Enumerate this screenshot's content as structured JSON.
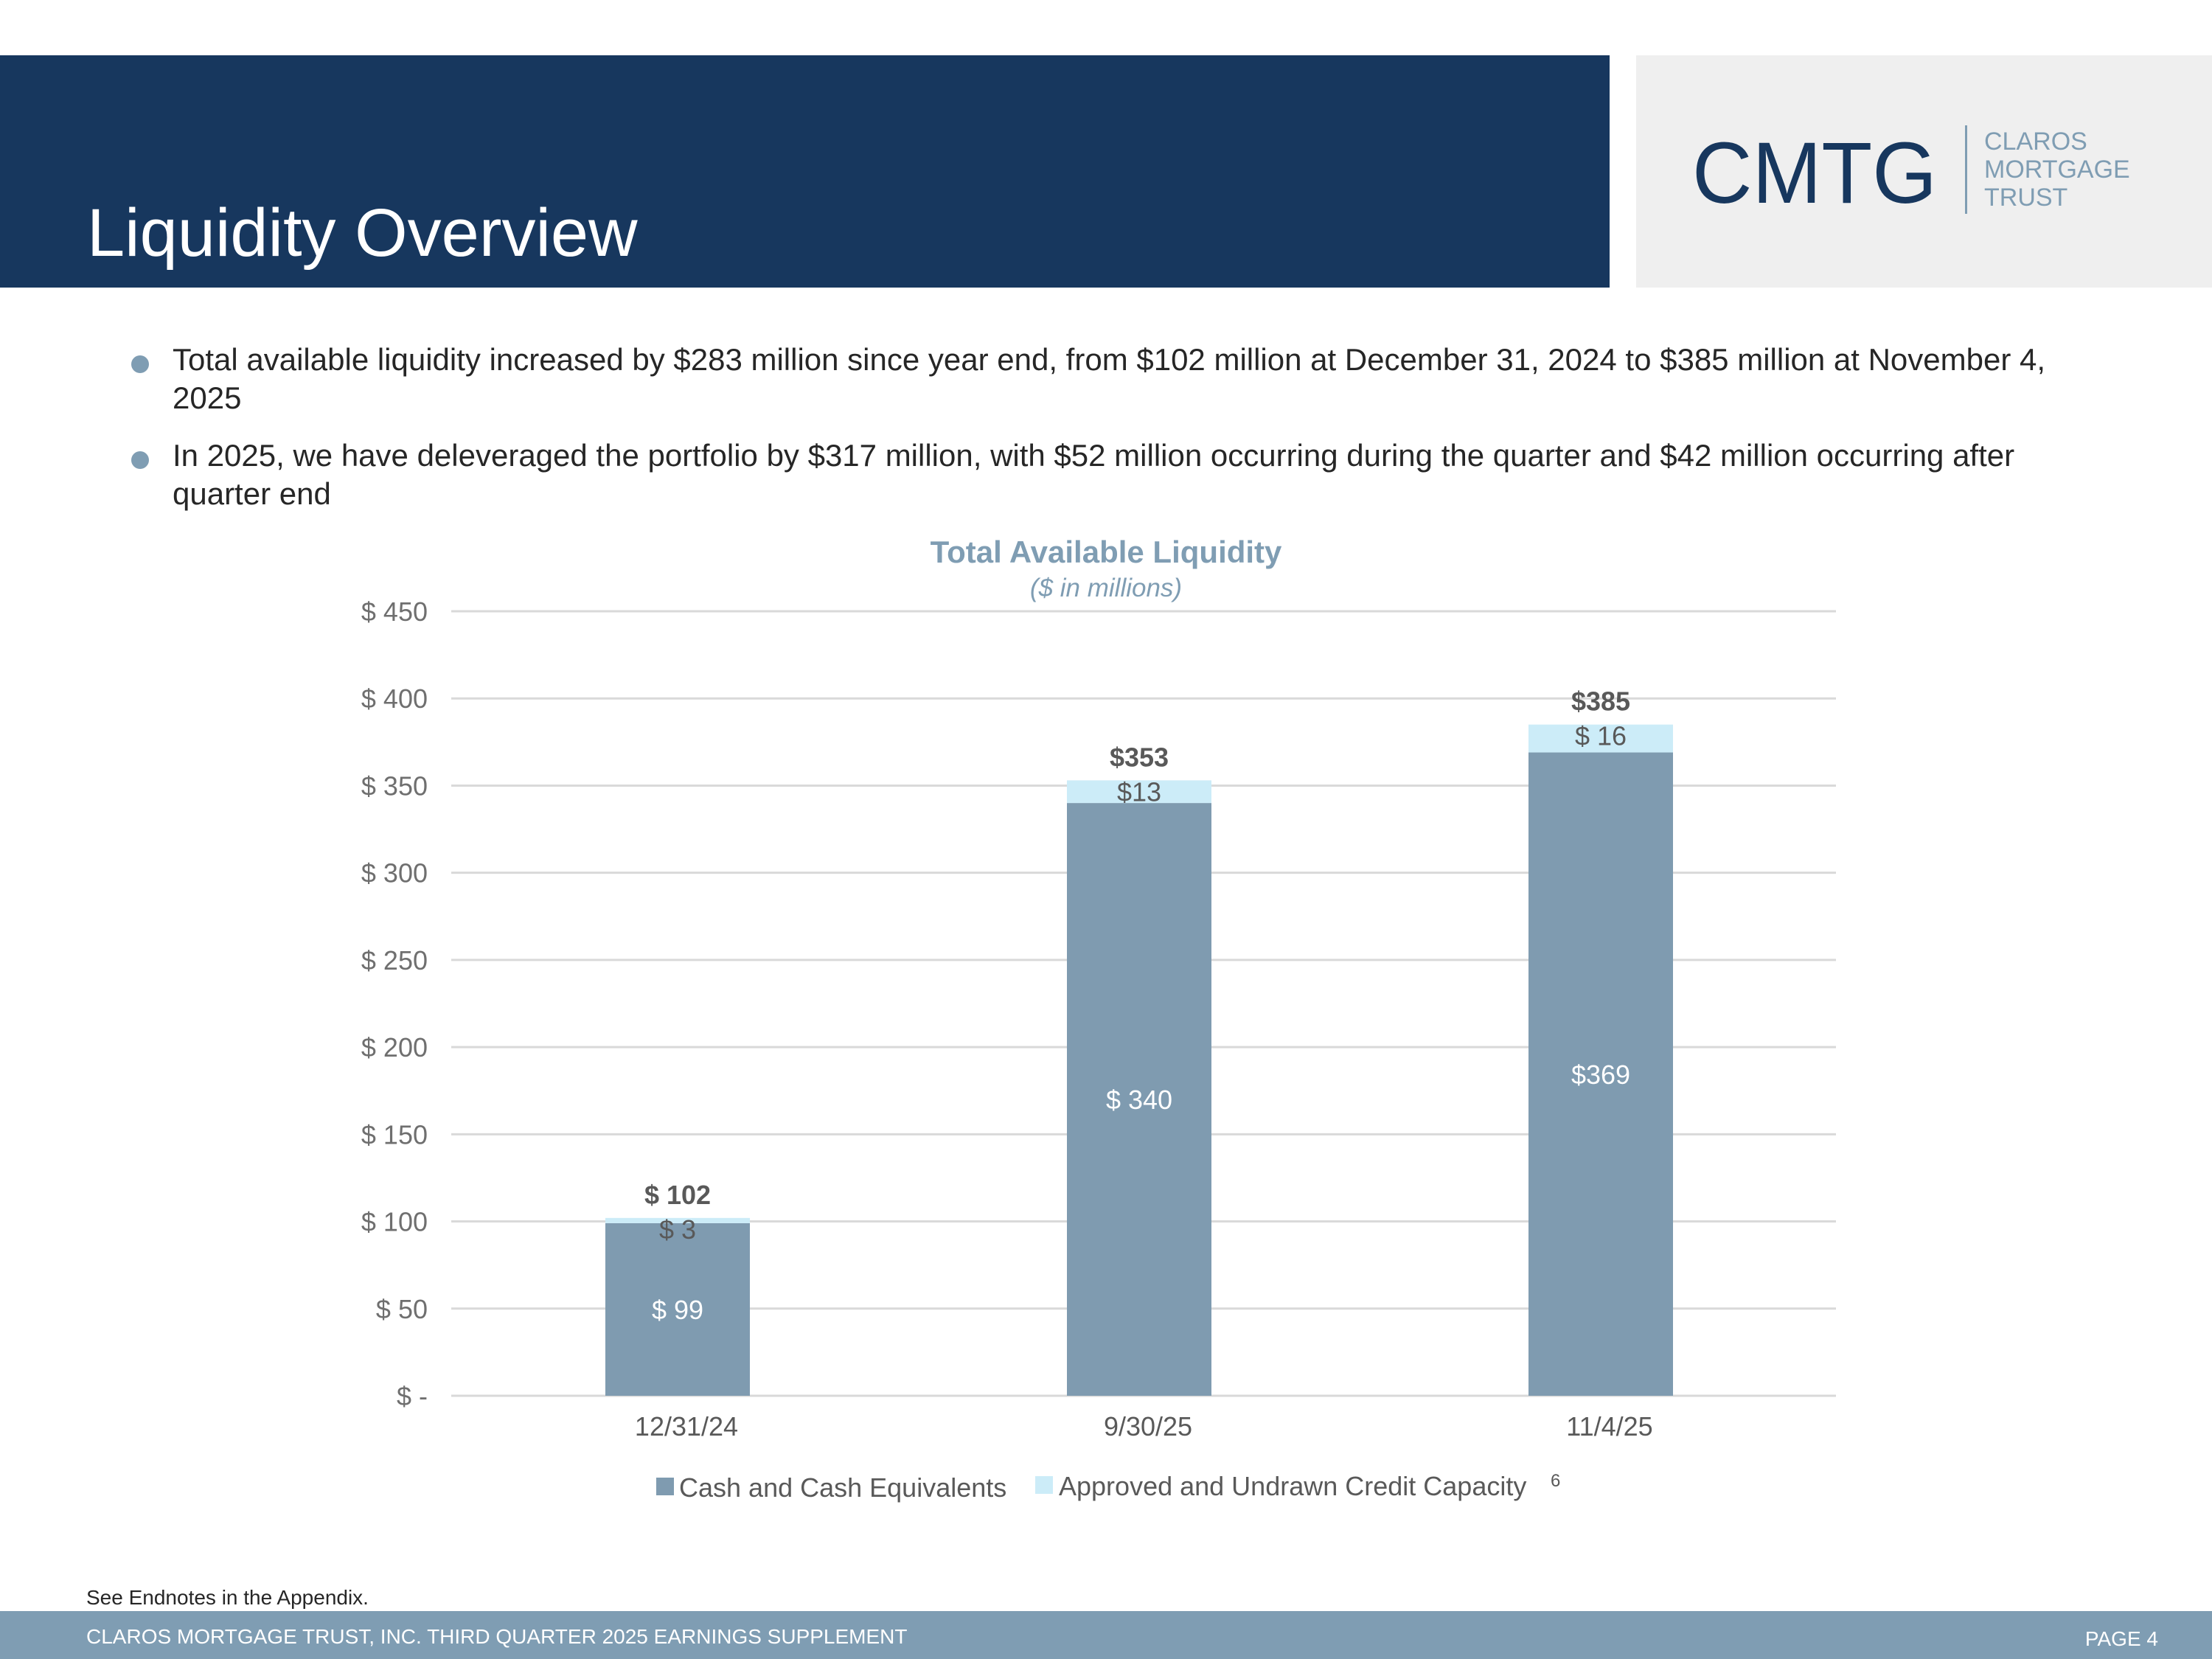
{
  "page": {
    "title": "Liquidity Overview",
    "bullets": [
      "Total available liquidity increased by $283 million since year end, from $102 million at December 31, 2024 to $385 million at November 4, 2025",
      "In 2025, we have deleveraged the portfolio by $317 million, with $52 million occurring during the quarter and $42 million occurring after quarter end"
    ],
    "endnote": "See Endnotes in the Appendix.",
    "footer_text": "CLAROS MORTGAGE TRUST, INC. THIRD QUARTER 2025 EARNINGS SUPPLEMENT",
    "page_number": "PAGE 4"
  },
  "logo": {
    "mark": "CMTG",
    "line1": "CLAROS",
    "line2": "MORTGAGE",
    "line3": "TRUST"
  },
  "colors": {
    "navy": "#17375e",
    "cash": "#7f9bb0",
    "credit": "#ccecf8",
    "title_blue": "#7f9db3",
    "gray_text": "#595959",
    "grid": "#d9d9d9"
  },
  "chart_data": {
    "type": "bar",
    "stacked": true,
    "title": "Total Available Liquidity",
    "subtitle": "($ in millions)",
    "categories": [
      "12/31/24",
      "9/30/25",
      "11/4/25"
    ],
    "series": [
      {
        "name": "Cash and Cash Equivalents",
        "values": [
          99,
          340,
          369
        ],
        "labels": [
          "$ 99",
          "$ 340",
          "$369"
        ]
      },
      {
        "name": "Approved and Undrawn Credit Capacity",
        "superscript": "6",
        "values": [
          3,
          13,
          16
        ],
        "labels": [
          "$ 3",
          "$13",
          "$ 16"
        ]
      }
    ],
    "totals": [
      102,
      353,
      385
    ],
    "total_labels": [
      "$ 102",
      "$353",
      "$385"
    ],
    "ylim": [
      0,
      450
    ],
    "yticks": [
      0,
      50,
      100,
      150,
      200,
      250,
      300,
      350,
      400,
      450
    ],
    "ytick_labels": [
      "$ -",
      "$ 50",
      "$ 100",
      "$ 150",
      "$ 200",
      "$ 250",
      "$ 300",
      "$ 350",
      "$ 400",
      "$ 450"
    ],
    "legend_position": "bottom",
    "grid": true
  }
}
